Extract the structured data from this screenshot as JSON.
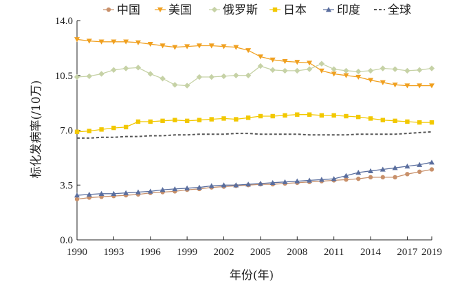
{
  "chart_data": {
    "type": "line",
    "title": "",
    "xlabel": "年份(年)",
    "ylabel": "标化发病率(/10万)",
    "x": [
      1990,
      1991,
      1992,
      1993,
      1994,
      1995,
      1996,
      1997,
      1998,
      1999,
      2000,
      2001,
      2002,
      2003,
      2004,
      2005,
      2006,
      2007,
      2008,
      2009,
      2010,
      2011,
      2012,
      2013,
      2014,
      2015,
      2016,
      2017,
      2018,
      2019
    ],
    "xticks": [
      "1990",
      "1993",
      "1996",
      "1999",
      "2002",
      "2005",
      "2008",
      "2011",
      "2014",
      "2017",
      "2019"
    ],
    "xtick_values": [
      1990,
      1993,
      1996,
      1999,
      2002,
      2005,
      2008,
      2011,
      2014,
      2017,
      2019
    ],
    "yticks": [
      "0.0",
      "3.5",
      "7.0",
      "10.5",
      "14.0"
    ],
    "ytick_values": [
      0,
      3.5,
      7.0,
      10.5,
      14.0
    ],
    "xlim": [
      1990,
      2019
    ],
    "ylim": [
      0,
      14
    ],
    "grid": false,
    "legend_position": "top",
    "series": [
      {
        "name": "中国",
        "color": "#c8906a",
        "marker": "circle",
        "dashed": false,
        "values": [
          2.6,
          2.7,
          2.75,
          2.8,
          2.85,
          2.9,
          3.0,
          3.05,
          3.1,
          3.2,
          3.25,
          3.35,
          3.4,
          3.45,
          3.5,
          3.55,
          3.55,
          3.6,
          3.65,
          3.7,
          3.75,
          3.8,
          3.85,
          3.9,
          4.0,
          4.0,
          4.0,
          4.2,
          4.35,
          4.5
        ]
      },
      {
        "name": "美国",
        "color": "#f0a020",
        "marker": "triangle-down",
        "dashed": false,
        "values": [
          12.8,
          12.7,
          12.65,
          12.65,
          12.65,
          12.6,
          12.5,
          12.4,
          12.3,
          12.35,
          12.4,
          12.4,
          12.35,
          12.3,
          12.1,
          11.7,
          11.5,
          11.4,
          11.35,
          11.3,
          10.8,
          10.6,
          10.5,
          10.4,
          10.2,
          10.05,
          9.9,
          9.85,
          9.85,
          9.85
        ]
      },
      {
        "name": "俄罗斯",
        "color": "#c6d2a6",
        "marker": "diamond",
        "dashed": false,
        "values": [
          10.4,
          10.45,
          10.6,
          10.85,
          10.95,
          11.0,
          10.6,
          10.3,
          9.9,
          9.85,
          10.4,
          10.4,
          10.45,
          10.5,
          10.5,
          11.1,
          10.85,
          10.8,
          10.8,
          10.9,
          11.25,
          10.9,
          10.8,
          10.75,
          10.8,
          10.95,
          10.9,
          10.8,
          10.85,
          10.95
        ]
      },
      {
        "name": "日本",
        "color": "#f2c800",
        "marker": "square",
        "dashed": false,
        "values": [
          6.9,
          6.95,
          7.05,
          7.15,
          7.2,
          7.55,
          7.55,
          7.6,
          7.65,
          7.6,
          7.65,
          7.7,
          7.75,
          7.7,
          7.8,
          7.9,
          7.9,
          7.95,
          8.0,
          8.0,
          7.95,
          7.95,
          7.9,
          7.85,
          7.75,
          7.65,
          7.6,
          7.55,
          7.5,
          7.5
        ]
      },
      {
        "name": "印度",
        "color": "#5a6e9e",
        "marker": "triangle-up",
        "dashed": false,
        "values": [
          2.85,
          2.9,
          2.95,
          2.95,
          3.0,
          3.05,
          3.1,
          3.2,
          3.25,
          3.3,
          3.35,
          3.45,
          3.5,
          3.5,
          3.55,
          3.6,
          3.65,
          3.7,
          3.75,
          3.8,
          3.85,
          3.9,
          4.1,
          4.3,
          4.4,
          4.5,
          4.6,
          4.7,
          4.8,
          4.95
        ]
      },
      {
        "name": "全球",
        "color": "#555555",
        "marker": "none",
        "dashed": true,
        "values": [
          6.5,
          6.5,
          6.55,
          6.55,
          6.6,
          6.6,
          6.65,
          6.65,
          6.7,
          6.7,
          6.75,
          6.75,
          6.75,
          6.8,
          6.8,
          6.75,
          6.75,
          6.75,
          6.75,
          6.7,
          6.7,
          6.7,
          6.7,
          6.75,
          6.75,
          6.75,
          6.75,
          6.8,
          6.85,
          6.9
        ]
      }
    ]
  }
}
